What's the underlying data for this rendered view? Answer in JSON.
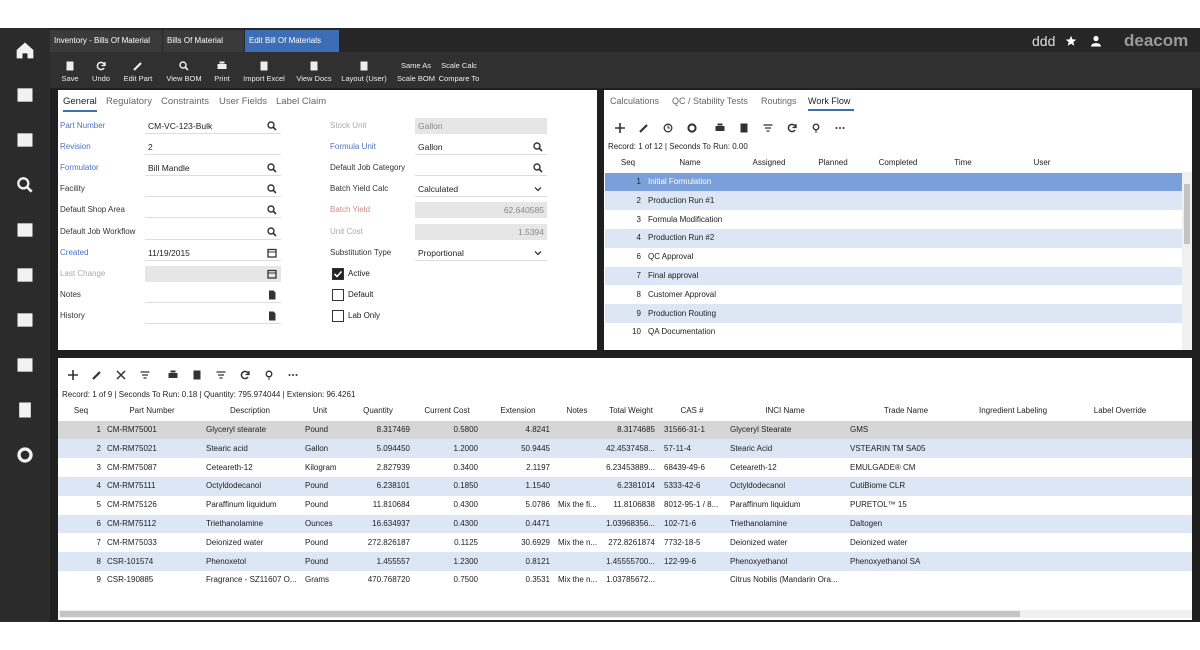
{
  "header": {
    "tabs": [
      "Inventory - Bills Of Material",
      "Bills Of Material",
      "Edit Bill Of Materials"
    ],
    "active_tab": 2,
    "user_label": "ddd",
    "logo": "deacom"
  },
  "toolbar": {
    "buttons": [
      "Save",
      "Undo",
      "Edit Part",
      "View BOM",
      "Print",
      "Import Excel",
      "View Docs",
      "Layout (User)"
    ],
    "stacked_buttons": [
      [
        "Same As",
        "Scale BOM"
      ],
      [
        "Scale Calc",
        "Compare To"
      ]
    ]
  },
  "form": {
    "tabs": [
      "General",
      "Regulatory",
      "Constraints",
      "User Fields",
      "Label Claim"
    ],
    "active_tab": 0,
    "left_fields": [
      {
        "label": "Part Number",
        "value": "CM-VC-123-Bulk",
        "label_style": "required",
        "icon": "search"
      },
      {
        "label": "Revision",
        "value": "2",
        "label_style": "required"
      },
      {
        "label": "Formulator",
        "value": "Bill Mandle",
        "label_style": "required",
        "icon": "search"
      },
      {
        "label": "Facility",
        "icon": "search"
      },
      {
        "label": "Default Shop Area",
        "icon": "search"
      },
      {
        "label": "Default Job Workflow",
        "icon": "search"
      },
      {
        "label": "Created",
        "value": "11/19/2015",
        "label_style": "required",
        "icon": "calendar"
      },
      {
        "label": "Last Change",
        "label_style": "disabled",
        "input": "readonly",
        "icon": "calendar"
      },
      {
        "label": "Notes",
        "icon": "note"
      },
      {
        "label": "History",
        "icon": "note"
      }
    ],
    "right_fields": [
      {
        "label": "Stock Unit",
        "value": "Gallon",
        "label_style": "disabled",
        "input": "readonly"
      },
      {
        "label": "Formula Unit",
        "value": "Gallon",
        "label_style": "required",
        "icon": "search"
      },
      {
        "label": "Default Job Category",
        "icon": "search"
      },
      {
        "label": "Batch Yield Calc",
        "value": "Calculated",
        "icon": "dropdown"
      },
      {
        "label": "Batch Yield",
        "value": "62.640585",
        "label_style": "warning",
        "input": "readonly"
      },
      {
        "label": "Unit Cost",
        "value": "1.5394",
        "label_style": "disabled",
        "input": "readonly"
      },
      {
        "label": "Substitution Type",
        "value": "Proportional",
        "icon": "dropdown"
      }
    ],
    "checkboxes": [
      {
        "label": "Active",
        "checked": true
      },
      {
        "label": "Default",
        "checked": false
      },
      {
        "label": "Lab Only",
        "checked": false
      }
    ]
  },
  "workflow": {
    "tabs": [
      "Calculations",
      "QC / Stability Tests",
      "Routings",
      "Work Flow"
    ],
    "active_tab": 3,
    "status": "Record: 1 of 12 | Seconds To Run: 0.00",
    "columns": [
      "Seq",
      "Name",
      "Assigned",
      "Planned",
      "Completed",
      "Time",
      "User"
    ],
    "rows": [
      [
        "1",
        "Initial Formulation"
      ],
      [
        "2",
        "Production Run #1"
      ],
      [
        "3",
        "Formula Modification"
      ],
      [
        "4",
        "Production Run #2"
      ],
      [
        "6",
        "QC Approval"
      ],
      [
        "7",
        "Final approval"
      ],
      [
        "8",
        "Customer Approval"
      ],
      [
        "9",
        "Production Routing"
      ],
      [
        "10",
        "QA Documentation"
      ]
    ],
    "selected_row": 0
  },
  "grid": {
    "status": "Record: 1 of 9 | Seconds To Run: 0.18 | Quantity: 795.974044 | Extension: 96.4261",
    "columns": [
      "Seq",
      "Part Number",
      "Description",
      "Unit",
      "Quantity",
      "Current Cost",
      "Extension",
      "Notes",
      "Total Weight",
      "CAS #",
      "INCI Name",
      "Trade Name",
      "Ingredient Labeling",
      "Label Override"
    ],
    "rows": [
      [
        "1",
        "CM-RM75001",
        "Glyceryl stearate",
        "Pound",
        "8.317469",
        "0.5800",
        "4.8241",
        null,
        "8.3174685",
        "31566-31-1",
        "Glyceryl Stearate",
        "GMS",
        null,
        null
      ],
      [
        "2",
        "CM-RM75021",
        "Stearic acid",
        "Gallon",
        "5.094450",
        "1.2000",
        "50.9445",
        null,
        "42.4537458...",
        "57-11-4",
        "Stearic Acid",
        "VSTEARIN TM SA05",
        null,
        null
      ],
      [
        "3",
        "CM-RM75087",
        "Ceteareth-12",
        "Kilogram",
        "2.827939",
        "0.3400",
        "2.1197",
        null,
        "6.23453889...",
        "68439-49-6",
        "Ceteareth-12",
        "EMULGADE® CM",
        null,
        null
      ],
      [
        "4",
        "CM-RM75111",
        "Octyldodecanol",
        "Pound",
        "6.238101",
        "0.1850",
        "1.1540",
        null,
        "6.2381014",
        "5333-42-6",
        "Octyldodecanol",
        "CutiBiome CLR",
        null,
        null
      ],
      [
        "5",
        "CM-RM75126",
        "Paraffinum liquidum",
        "Pound",
        "11.810684",
        "0.4300",
        "5.0786",
        "Mix the fi...",
        "11.8106838",
        "8012-95-1 / 8...",
        "Paraffinum liquidum",
        "PURETOL™ 15",
        null,
        null
      ],
      [
        "6",
        "CM-RM75112",
        "Triethanolamine",
        "Ounces",
        "16.634937",
        "0.4300",
        "0.4471",
        null,
        "1.03968356...",
        "102-71-6",
        "Triethanolamine",
        "Daltogen",
        null,
        null
      ],
      [
        "7",
        "CM-RM75033",
        "Deionized water",
        "Pound",
        "272.826187",
        "0.1125",
        "30.6929",
        "Mix the n...",
        "272.8261874",
        "7732-18-5",
        "Deionized water",
        "Deionized water",
        null,
        null
      ],
      [
        "8",
        "CSR-101574",
        "Phenoxetol",
        "Pound",
        "1.455557",
        "1.2300",
        "0.8121",
        null,
        "1.45555700...",
        "122-99-6",
        "Phenoxyethanol",
        "Phenoxyethanol SA",
        null,
        null
      ],
      [
        "9",
        "CSR-190885",
        "Fragrance - SZ11607 O...",
        "Grams",
        "470.768720",
        "0.7500",
        "0.3531",
        "Mix the n...",
        "1.03785672...",
        null,
        "Citrus Nobilis (Mandarin Ora...",
        null,
        null,
        null
      ]
    ],
    "selected_row": 0
  }
}
